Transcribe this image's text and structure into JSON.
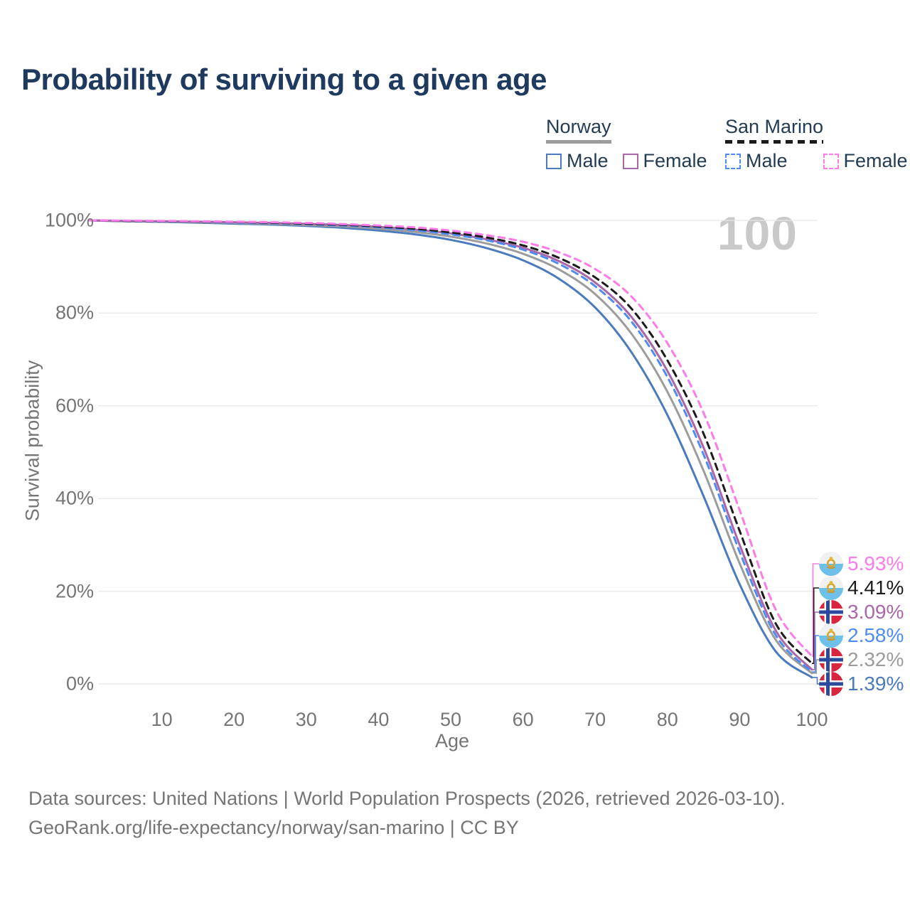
{
  "title": "Probability of surviving to a given age",
  "watermark": "100",
  "colors": {
    "title": "#1f3a5f",
    "axis_text": "#757575",
    "gridline": "#e8e8e8",
    "watermark": "#c9c9c9",
    "legend_text": "#223c54",
    "norway_male": "#4a7bbf",
    "norway_all": "#9c9c9c",
    "norway_female": "#aa66a8",
    "san_marino_male": "#4e8cf0",
    "san_marino_all": "#1b1b1b",
    "san_marino_female": "#fb7be9"
  },
  "legend": {
    "groups": [
      {
        "name": "Norway",
        "underline": "solid",
        "underline_color": "#9c9c9c",
        "items": [
          {
            "label": "Male",
            "color": "#4a7bbf",
            "dashed": false
          },
          {
            "label": "Female",
            "color": "#aa66a8",
            "dashed": false
          }
        ]
      },
      {
        "name": "San Marino",
        "underline": "dashed",
        "underline_color": "#1b1b1b",
        "items": [
          {
            "label": "Male",
            "color": "#4e8cf0",
            "dashed": true
          },
          {
            "label": "Female",
            "color": "#fb7be9",
            "dashed": true
          }
        ]
      }
    ]
  },
  "chart_data": {
    "type": "line",
    "title": "Probability of surviving to a given age",
    "xlabel": "Age",
    "ylabel": "Survival probability",
    "xlim": [
      0,
      100
    ],
    "ylim": [
      0,
      100
    ],
    "grid": "horizontal",
    "legend_position": "top-right",
    "xticks": [
      10,
      20,
      30,
      40,
      50,
      60,
      70,
      80,
      90,
      100
    ],
    "yticks": [
      "100%",
      "80%",
      "60%",
      "40%",
      "20%",
      "0%"
    ],
    "x": [
      0,
      5,
      10,
      15,
      20,
      25,
      30,
      35,
      40,
      45,
      50,
      55,
      60,
      65,
      70,
      75,
      80,
      85,
      90,
      95,
      100
    ],
    "series": [
      {
        "name": "Norway Male",
        "flag": "norway",
        "color": "#4a7bbf",
        "dashed": false,
        "end_label": "1.39%",
        "end_value": 1.39,
        "values": [
          100,
          99.8,
          99.7,
          99.5,
          99.3,
          99.1,
          98.8,
          98.4,
          97.8,
          97.0,
          95.8,
          94.0,
          91.4,
          87.4,
          81.2,
          71.6,
          58.0,
          40.5,
          21.5,
          7.0,
          1.39
        ]
      },
      {
        "name": "Norway",
        "flag": "norway",
        "color": "#9c9c9c",
        "dashed": false,
        "end_label": "2.32%",
        "end_value": 2.32,
        "values": [
          100,
          99.85,
          99.75,
          99.6,
          99.45,
          99.25,
          99.0,
          98.7,
          98.2,
          97.5,
          96.5,
          95.0,
          92.8,
          89.4,
          84.1,
          75.6,
          63.0,
          46.0,
          26.0,
          9.5,
          2.32
        ]
      },
      {
        "name": "Norway Female",
        "flag": "norway",
        "color": "#aa66a8",
        "dashed": false,
        "end_label": "3.09%",
        "end_value": 3.09,
        "values": [
          100,
          99.9,
          99.8,
          99.7,
          99.6,
          99.45,
          99.25,
          99.0,
          98.6,
          98.0,
          97.2,
          95.9,
          94.1,
          91.2,
          86.6,
          79.2,
          67.5,
          51.0,
          30.0,
          11.5,
          3.09
        ]
      },
      {
        "name": "San Marino Male",
        "flag": "san-marino",
        "color": "#4e8cf0",
        "dashed": true,
        "end_label": "2.58%",
        "end_value": 2.58,
        "values": [
          100,
          99.9,
          99.8,
          99.7,
          99.55,
          99.4,
          99.2,
          98.9,
          98.5,
          97.9,
          97.0,
          95.7,
          93.7,
          90.6,
          85.8,
          78.2,
          66.2,
          49.5,
          28.5,
          10.5,
          2.58
        ]
      },
      {
        "name": "San Marino",
        "flag": "san-marino",
        "color": "#1b1b1b",
        "dashed": true,
        "end_label": "4.41%",
        "end_value": 4.41,
        "values": [
          100,
          99.9,
          99.85,
          99.75,
          99.65,
          99.5,
          99.3,
          99.05,
          98.7,
          98.2,
          97.4,
          96.3,
          94.6,
          91.9,
          87.7,
          81.0,
          69.8,
          54.0,
          33.0,
          13.0,
          4.41
        ]
      },
      {
        "name": "San Marino Female",
        "flag": "san-marino",
        "color": "#fb7be9",
        "dashed": true,
        "end_label": "5.93%",
        "end_value": 5.93,
        "values": [
          100,
          99.95,
          99.9,
          99.8,
          99.7,
          99.6,
          99.45,
          99.2,
          98.9,
          98.5,
          97.8,
          96.8,
          95.4,
          93.1,
          89.5,
          83.6,
          73.5,
          58.5,
          37.5,
          16.0,
          5.93
        ]
      }
    ]
  },
  "footer": {
    "line1": "Data sources: United Nations | World Population Prospects (2026, retrieved 2026-03-10).",
    "line2": "GeoRank.org/life-expectancy/norway/san-marino | CC BY"
  }
}
